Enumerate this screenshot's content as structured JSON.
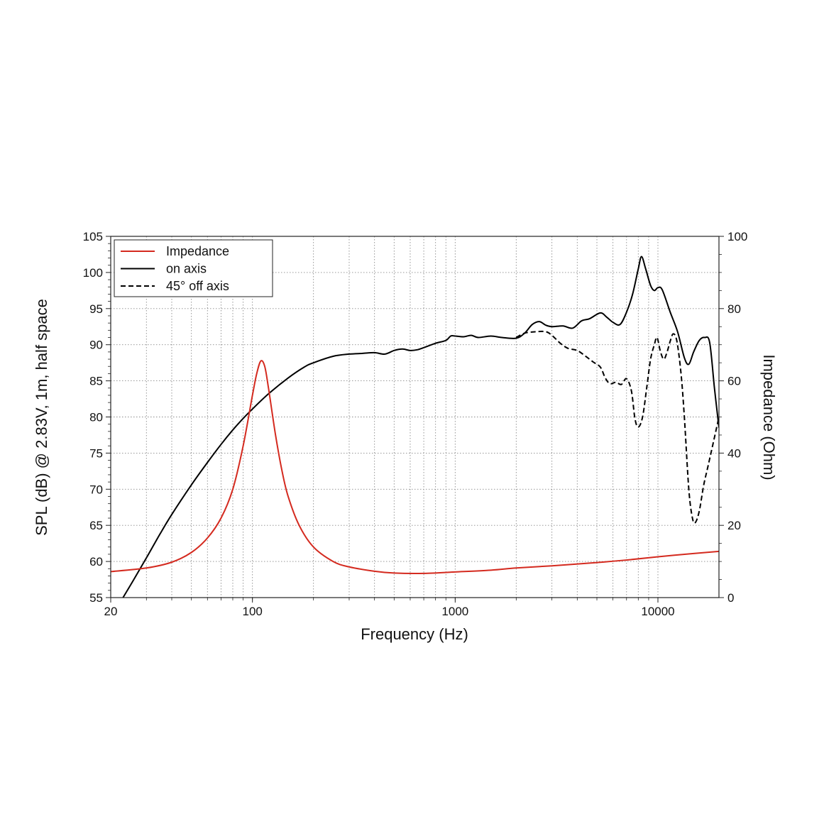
{
  "chart_data": {
    "type": "line",
    "xlabel": "Frequency (Hz)",
    "ylabel_left": "SPL (dB) @ 2.83V, 1m, half space",
    "ylabel_right": "Impedance (Ohm)",
    "x_scale": "log",
    "xlim": [
      20,
      20000
    ],
    "ylim_left": [
      55,
      105
    ],
    "ylim_right": [
      0,
      100
    ],
    "x_ticks": [
      20,
      100,
      1000,
      10000
    ],
    "x_tick_labels": [
      "20",
      "100",
      "1000",
      "10000"
    ],
    "y_left_ticks": [
      55,
      60,
      65,
      70,
      75,
      80,
      85,
      90,
      95,
      100,
      105
    ],
    "y_left_tick_labels": [
      "55",
      "60",
      "65",
      "70",
      "75",
      "80",
      "85",
      "90",
      "95",
      "100",
      "105"
    ],
    "y_right_ticks": [
      0,
      20,
      40,
      60,
      80,
      100
    ],
    "y_right_tick_labels": [
      "0",
      "20",
      "40",
      "60",
      "80",
      "100"
    ],
    "grid": true,
    "legend_position": "top-left",
    "series": [
      {
        "name": "Impedance",
        "axis": "right",
        "color": "#d42a1f",
        "dash": "solid",
        "points": [
          [
            20,
            7.2
          ],
          [
            30,
            8.2
          ],
          [
            40,
            9.8
          ],
          [
            50,
            12.5
          ],
          [
            60,
            16.5
          ],
          [
            70,
            22
          ],
          [
            80,
            30
          ],
          [
            90,
            42
          ],
          [
            100,
            56
          ],
          [
            105,
            62
          ],
          [
            110,
            65.5
          ],
          [
            115,
            64
          ],
          [
            120,
            58
          ],
          [
            130,
            45
          ],
          [
            140,
            35
          ],
          [
            150,
            28
          ],
          [
            170,
            20
          ],
          [
            200,
            14
          ],
          [
            250,
            10
          ],
          [
            300,
            8.5
          ],
          [
            400,
            7.3
          ],
          [
            500,
            6.8
          ],
          [
            700,
            6.7
          ],
          [
            1000,
            7.1
          ],
          [
            1500,
            7.6
          ],
          [
            2000,
            8.2
          ],
          [
            3000,
            8.8
          ],
          [
            5000,
            9.7
          ],
          [
            7000,
            10.4
          ],
          [
            10000,
            11.3
          ],
          [
            15000,
            12.2
          ],
          [
            20000,
            12.8
          ]
        ]
      },
      {
        "name": "on axis",
        "axis": "left",
        "color": "#000000",
        "dash": "solid",
        "points": [
          [
            23,
            55
          ],
          [
            26,
            57.5
          ],
          [
            30,
            60.5
          ],
          [
            35,
            63.8
          ],
          [
            40,
            66.5
          ],
          [
            50,
            70.6
          ],
          [
            60,
            73.7
          ],
          [
            70,
            76.2
          ],
          [
            80,
            78.2
          ],
          [
            90,
            79.8
          ],
          [
            100,
            81.1
          ],
          [
            120,
            83.2
          ],
          [
            150,
            85.4
          ],
          [
            180,
            86.9
          ],
          [
            200,
            87.5
          ],
          [
            250,
            88.4
          ],
          [
            300,
            88.7
          ],
          [
            350,
            88.8
          ],
          [
            400,
            88.9
          ],
          [
            450,
            88.7
          ],
          [
            500,
            89.2
          ],
          [
            550,
            89.4
          ],
          [
            600,
            89.2
          ],
          [
            650,
            89.3
          ],
          [
            700,
            89.6
          ],
          [
            800,
            90.2
          ],
          [
            900,
            90.6
          ],
          [
            950,
            91.2
          ],
          [
            1000,
            91.2
          ],
          [
            1100,
            91.1
          ],
          [
            1200,
            91.3
          ],
          [
            1300,
            91.0
          ],
          [
            1500,
            91.2
          ],
          [
            1700,
            91.0
          ],
          [
            2000,
            90.9
          ],
          [
            2200,
            91.6
          ],
          [
            2400,
            92.8
          ],
          [
            2600,
            93.2
          ],
          [
            2800,
            92.7
          ],
          [
            3000,
            92.5
          ],
          [
            3400,
            92.6
          ],
          [
            3800,
            92.3
          ],
          [
            4200,
            93.3
          ],
          [
            4600,
            93.6
          ],
          [
            5200,
            94.4
          ],
          [
            5600,
            93.8
          ],
          [
            6000,
            93.1
          ],
          [
            6500,
            92.8
          ],
          [
            7000,
            94.5
          ],
          [
            7500,
            97.0
          ],
          [
            8000,
            100.5
          ],
          [
            8300,
            102.2
          ],
          [
            8700,
            100.5
          ],
          [
            9200,
            98.2
          ],
          [
            9600,
            97.5
          ],
          [
            10000,
            97.9
          ],
          [
            10500,
            97.6
          ],
          [
            11500,
            94.5
          ],
          [
            12500,
            91.8
          ],
          [
            13500,
            88.2
          ],
          [
            14200,
            87.3
          ],
          [
            15000,
            89.0
          ],
          [
            16000,
            90.6
          ],
          [
            17000,
            91.0
          ],
          [
            18000,
            90.3
          ],
          [
            19000,
            84.0
          ],
          [
            20000,
            78.5
          ]
        ]
      },
      {
        "name": "45° off axis",
        "axis": "left",
        "color": "#000000",
        "dash": "dashed",
        "points": [
          [
            2000,
            91.0
          ],
          [
            2200,
            91.6
          ],
          [
            2500,
            91.8
          ],
          [
            2800,
            91.8
          ],
          [
            3000,
            91.3
          ],
          [
            3300,
            90.2
          ],
          [
            3600,
            89.5
          ],
          [
            4000,
            89.2
          ],
          [
            4400,
            88.4
          ],
          [
            4800,
            87.6
          ],
          [
            5200,
            86.9
          ],
          [
            5500,
            85.4
          ],
          [
            5800,
            84.6
          ],
          [
            6200,
            84.8
          ],
          [
            6600,
            84.5
          ],
          [
            7000,
            85.3
          ],
          [
            7400,
            83.6
          ],
          [
            7700,
            79.8
          ],
          [
            8000,
            78.6
          ],
          [
            8400,
            80.0
          ],
          [
            8800,
            84.0
          ],
          [
            9200,
            88.0
          ],
          [
            9600,
            90.0
          ],
          [
            9900,
            91.0
          ],
          [
            10300,
            89.0
          ],
          [
            10700,
            88.0
          ],
          [
            11100,
            89.0
          ],
          [
            11500,
            90.5
          ],
          [
            11900,
            91.5
          ],
          [
            12400,
            90.5
          ],
          [
            13000,
            86.0
          ],
          [
            13500,
            80.0
          ],
          [
            14200,
            70.0
          ],
          [
            14800,
            66.0
          ],
          [
            15300,
            65.4
          ],
          [
            16000,
            67.0
          ],
          [
            16800,
            70.5
          ],
          [
            17600,
            73.0
          ],
          [
            18600,
            76.0
          ],
          [
            20000,
            80.0
          ]
        ]
      }
    ]
  }
}
